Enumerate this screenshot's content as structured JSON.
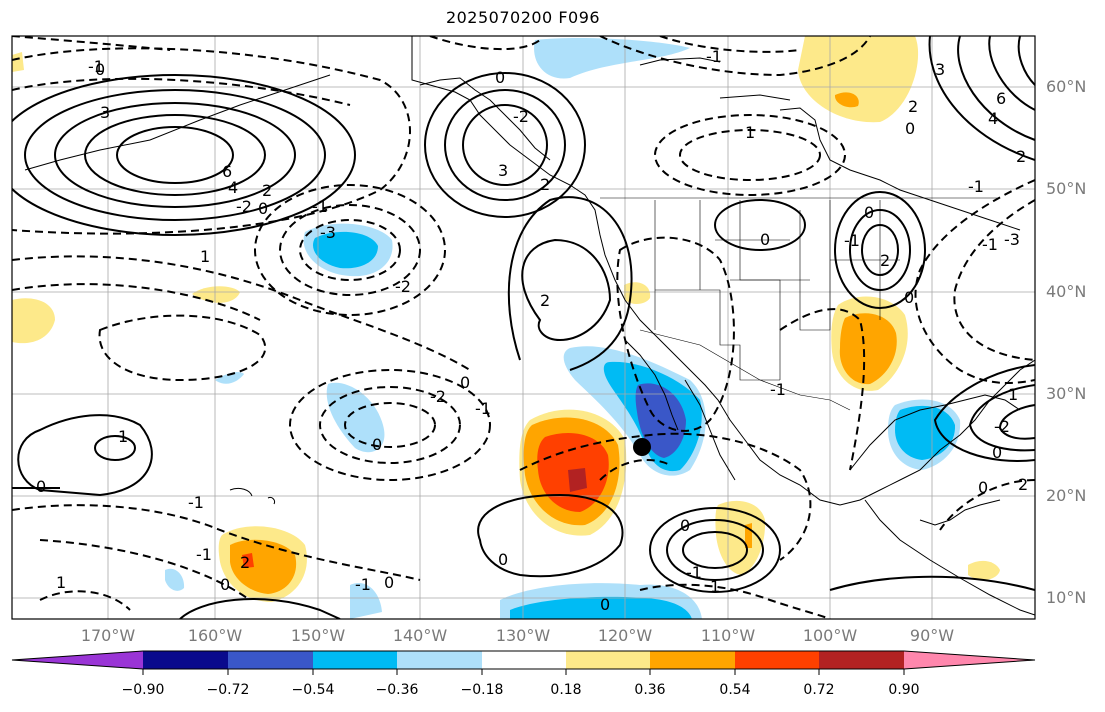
{
  "title": "2025070200 F096",
  "lat_axis": {
    "labels": [
      "60°N",
      "50°N",
      "40°N",
      "30°N",
      "20°N",
      "10°N"
    ]
  },
  "lon_axis": {
    "labels": [
      "170°W",
      "160°W",
      "150°W",
      "140°W",
      "130°W",
      "120°W",
      "110°W",
      "100°W",
      "90°W"
    ]
  },
  "colorbar": {
    "tick_labels": [
      "−0.90",
      "−0.72",
      "−0.54",
      "−0.36",
      "−0.18",
      "0.18",
      "0.36",
      "0.54",
      "0.72",
      "0.90"
    ],
    "colors": [
      "#9a35d6",
      "#0a0a8c",
      "#3a57c8",
      "#00bbf4",
      "#aee0fa",
      "#ffffff",
      "#fde98a",
      "#ffa500",
      "#ff4000",
      "#b22222",
      "#ff87ad"
    ]
  },
  "contour_labels": [
    {
      "text": "3"
    },
    {
      "text": "6"
    },
    {
      "text": "4"
    },
    {
      "text": "2"
    },
    {
      "text": "0"
    },
    {
      "text": "-2"
    },
    {
      "text": "1"
    },
    {
      "text": "-1"
    },
    {
      "text": "-3"
    },
    {
      "text": "-2"
    },
    {
      "text": "2"
    },
    {
      "text": "3"
    },
    {
      "text": "-2"
    },
    {
      "text": "2"
    },
    {
      "text": "0"
    },
    {
      "text": "-1"
    },
    {
      "text": "1"
    },
    {
      "text": "0"
    },
    {
      "text": "-2"
    },
    {
      "text": "-1"
    },
    {
      "text": "0"
    },
    {
      "text": "0"
    },
    {
      "text": "1"
    },
    {
      "text": "-1"
    },
    {
      "text": "0"
    },
    {
      "text": "2"
    },
    {
      "text": "1"
    },
    {
      "text": "0"
    },
    {
      "text": "-1"
    },
    {
      "text": "0"
    },
    {
      "text": "-1"
    },
    {
      "text": "0"
    },
    {
      "text": "6"
    },
    {
      "text": "4"
    },
    {
      "text": "2"
    },
    {
      "text": "0"
    },
    {
      "text": "-1"
    },
    {
      "text": "3"
    },
    {
      "text": "2"
    },
    {
      "text": "0"
    },
    {
      "text": "-1"
    },
    {
      "text": "2"
    },
    {
      "text": "0"
    },
    {
      "text": "-1"
    },
    {
      "text": "0"
    },
    {
      "text": "1"
    },
    {
      "text": "0"
    },
    {
      "text": "-1"
    },
    {
      "text": "-1"
    },
    {
      "text": "1"
    },
    {
      "text": "0"
    },
    {
      "text": "-2"
    },
    {
      "text": "-3"
    },
    {
      "text": "2"
    },
    {
      "text": "0"
    },
    {
      "text": "-1"
    },
    {
      "text": "0"
    }
  ],
  "marker": {
    "type": "point",
    "color": "#000000"
  }
}
